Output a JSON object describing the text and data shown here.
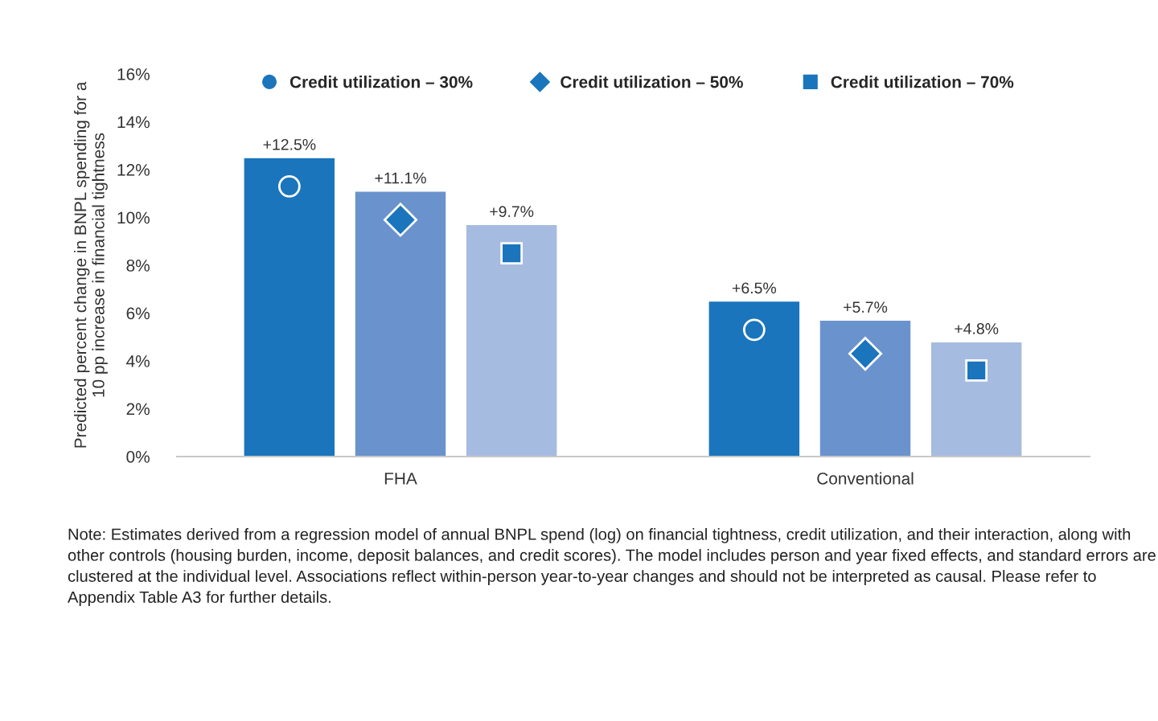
{
  "chart_data": {
    "type": "bar",
    "ylabel": "Predicted percent change in BNPL spending for a\n10 pp increase in financial tightness",
    "categories": [
      "FHA",
      "Conventional"
    ],
    "series": [
      {
        "color": "#1a75bc",
        "values": [
          12.5,
          6.5
        ],
        "value_labels": [
          "+12.5%",
          "+6.5%"
        ]
      },
      {
        "color": "#6a93cd",
        "values": [
          11.1,
          5.7
        ],
        "value_labels": [
          "+11.1%",
          "+5.7%"
        ]
      },
      {
        "color": "#a6bbe0",
        "values": [
          9.7,
          4.8
        ],
        "value_labels": [
          "+9.7%",
          "+4.8%"
        ]
      },
      {
        "type": "scatter",
        "name": "Credit utilization – 30%",
        "marker": "circle",
        "color": "#1a75bc",
        "x": [
          "FHA",
          "Conventional"
        ],
        "values": [
          11.3,
          5.3
        ]
      },
      {
        "type": "scatter",
        "name": "Credit utilization – 50%",
        "marker": "diamond",
        "color": "#1a75bc",
        "x": [
          "FHA",
          "Conventional"
        ],
        "values": [
          9.9,
          4.3
        ]
      },
      {
        "type": "scatter",
        "name": "Credit utilization – 70%",
        "marker": "square",
        "color": "#1a75bc",
        "x": [
          "FHA",
          "Conventional"
        ],
        "values": [
          8.5,
          3.6
        ]
      }
    ],
    "ylim": [
      0,
      16
    ],
    "yticks": [
      {
        "value": 0,
        "label": "0%"
      },
      {
        "value": 2,
        "label": "2%"
      },
      {
        "value": 4,
        "label": "4%"
      },
      {
        "value": 6,
        "label": "6%"
      },
      {
        "value": 8,
        "label": "8%"
      },
      {
        "value": 10,
        "label": "10%"
      },
      {
        "value": 12,
        "label": "12%"
      },
      {
        "value": 14,
        "label": "14%"
      },
      {
        "value": 16,
        "label": "16%"
      }
    ],
    "grid": false,
    "legend": "top",
    "annotations": [
      "Note: Estimates derived from a regression model of annual BNPL spend (log) on financial tightness, credit utilization, and their interaction, along with other controls (housing burden, income, deposit balances, and credit scores). The model includes person and year fixed effects, and standard errors are clustered at the individual level. Associations reflect within-person year-to-year changes and should not be interpreted as causal. Please refer to Appendix Table A3 for further details."
    ]
  }
}
